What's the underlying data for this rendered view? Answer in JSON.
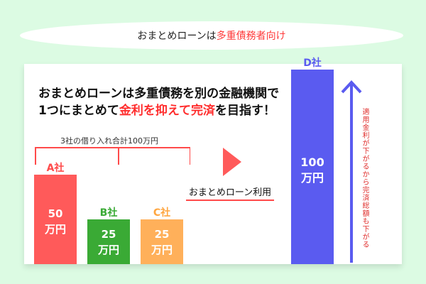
{
  "header": {
    "prefix": "おまとめローンは",
    "accent": "多重債務者向け"
  },
  "headline": {
    "line1": "おまとめローンは多重債務を別の金融機関で",
    "line2_prefix": "1つにまとめて",
    "line2_red": "金利を抑えて完済",
    "line2_suffix": "を目指す！"
  },
  "bracket_label": "3社の借り入れ合計100万円",
  "bars": [
    {
      "label": "A社",
      "value_num": "50",
      "value_unit": "万円",
      "amount": 50,
      "color": "#ff5a5a",
      "label_color": "#ff4a4a"
    },
    {
      "label": "B社",
      "value_num": "25",
      "value_unit": "万円",
      "amount": 25,
      "color": "#3aaa35",
      "label_color": "#3aaa35"
    },
    {
      "label": "C社",
      "value_num": "25",
      "value_unit": "万円",
      "amount": 25,
      "color": "#ffb05a",
      "label_color": "#ffa640"
    }
  ],
  "after_bar": {
    "label": "D社",
    "value_num": "100",
    "value_unit": "万円",
    "amount": 100,
    "color": "#5a5bf0",
    "label_color": "#5a5bf0"
  },
  "use_label": "おまとめローン利用",
  "vertical_note": "適用金利が下がるから完済総額も下がる",
  "colors": {
    "background": "#dcfbe3",
    "accent_red": "#ff3b3b",
    "arrow_blue": "#5a5bf0"
  }
}
